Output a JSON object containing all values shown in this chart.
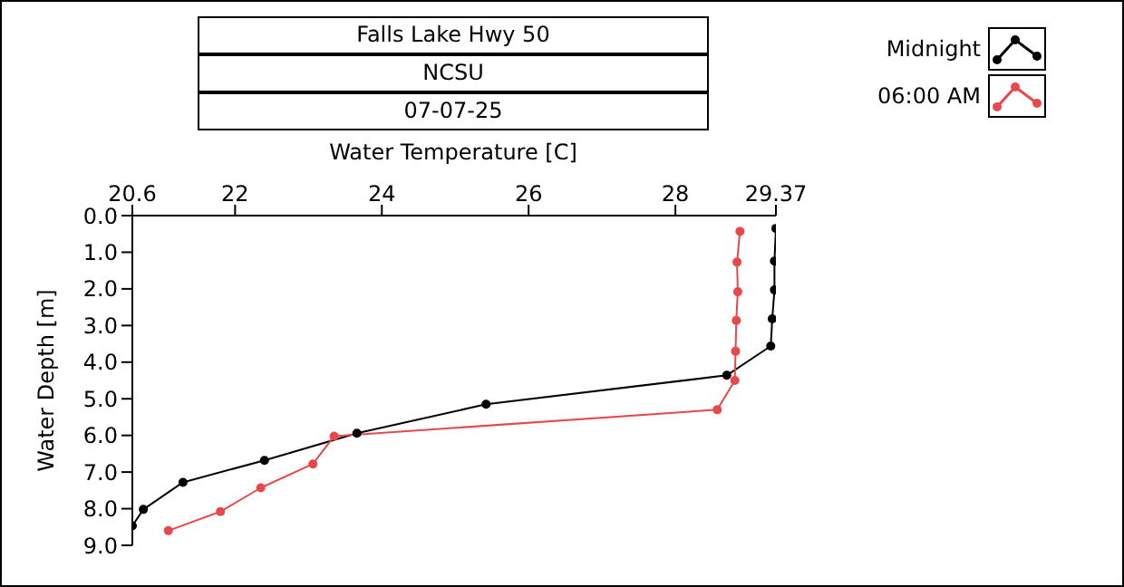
{
  "chart_data": {
    "type": "line",
    "title": "Falls Lake Hwy 50",
    "subtitle": "NCSU",
    "annotations": [
      "07-07-25"
    ],
    "xlabel": "Water Temperature [C]",
    "ylabel": "Water Depth [m]",
    "xlim": [
      20.6,
      29.37
    ],
    "xticks": [
      20.6,
      22,
      24,
      26,
      28,
      29.37
    ],
    "ylim": [
      9,
      0
    ],
    "yticks": [
      {
        "value": 0,
        "label": "0.0"
      },
      {
        "value": 1,
        "label": "1.0"
      },
      {
        "value": 2,
        "label": "2.0"
      },
      {
        "value": 3,
        "label": "3.0"
      },
      {
        "value": 4,
        "label": "4.0"
      },
      {
        "value": 5,
        "label": "5.0"
      },
      {
        "value": 6,
        "label": "6.0"
      },
      {
        "value": 7,
        "label": "7.0"
      },
      {
        "value": 8,
        "label": "8.0"
      },
      {
        "value": 9,
        "label": "9.0"
      }
    ],
    "grid": false,
    "legend": "top right",
    "marker": "circle",
    "series": [
      {
        "name": "Midnight",
        "color": "#000000",
        "x": [
          29.37,
          29.35,
          29.35,
          29.32,
          29.3,
          28.7,
          25.42,
          23.66,
          22.4,
          21.29,
          20.75,
          20.6
        ],
        "values": [
          0.35,
          1.24,
          2.03,
          2.82,
          3.56,
          4.36,
          5.15,
          5.94,
          6.68,
          7.28,
          8.02,
          8.47
        ]
      },
      {
        "name": "06:00 AM",
        "color": "#e8474c",
        "x": [
          28.88,
          28.84,
          28.85,
          28.83,
          28.82,
          28.81,
          28.57,
          23.35,
          23.06,
          22.35,
          21.8,
          21.09
        ],
        "values": [
          0.43,
          1.27,
          2.08,
          2.86,
          3.7,
          4.5,
          5.3,
          6.02,
          6.78,
          7.43,
          8.08,
          8.6
        ]
      }
    ]
  }
}
